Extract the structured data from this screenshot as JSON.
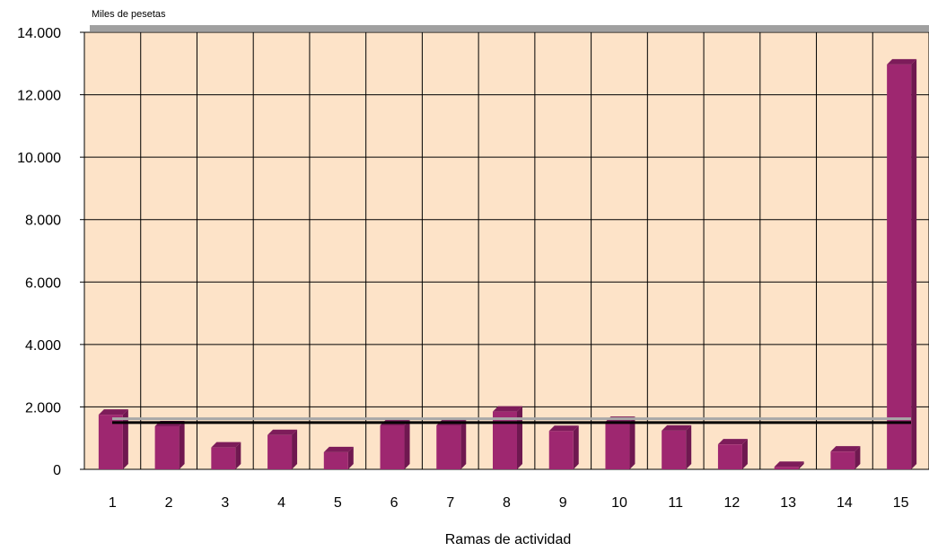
{
  "chart_data": {
    "type": "bar",
    "ylabel": "Miles de pesetas",
    "xlabel": "Ramas de actividad",
    "categories": [
      "1",
      "2",
      "3",
      "4",
      "5",
      "6",
      "7",
      "8",
      "9",
      "10",
      "11",
      "12",
      "13",
      "14",
      "15"
    ],
    "values": [
      1750,
      1380,
      700,
      1100,
      550,
      1410,
      1410,
      1850,
      1230,
      1520,
      1240,
      800,
      80,
      570,
      12970
    ],
    "ylim": [
      0,
      14000
    ],
    "yticks": [
      0,
      2000,
      4000,
      6000,
      8000,
      10000,
      12000,
      14000
    ],
    "ytick_labels": [
      "0",
      "2.000",
      "4.000",
      "6.000",
      "8.000",
      "10.000",
      "12.000",
      "14.000"
    ],
    "reference_lines": [
      1500,
      1620
    ],
    "grid": true,
    "legend": "none",
    "colors": {
      "plot_background": "#FDE3C8",
      "bar_face": "#9E2770",
      "bar_side": "#6F1850",
      "bar_top": "#7D1C5A",
      "grid": "#000000",
      "reference_line_dark": "#000000",
      "reference_line_light": "#A8A8A8",
      "top_border": "#A0A0A0"
    }
  }
}
